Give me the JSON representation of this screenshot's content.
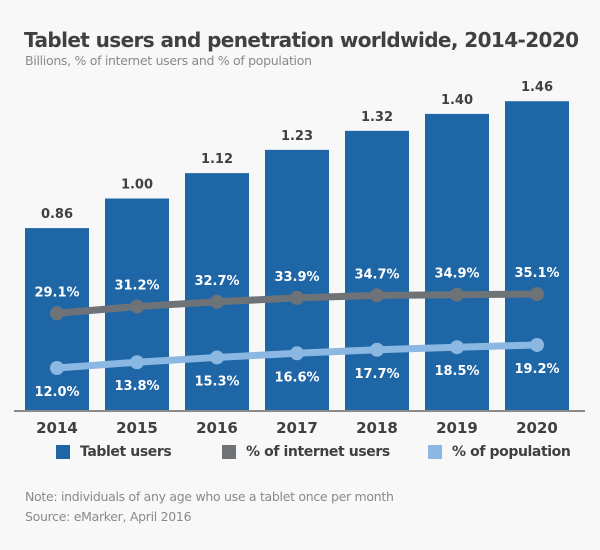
{
  "chart_data": {
    "type": "bar",
    "title": "Tablet users and penetration worldwide, 2014-2020",
    "subtitle": "Billions, % of internet users and % of population",
    "categories": [
      "2014",
      "2015",
      "2016",
      "2017",
      "2018",
      "2019",
      "2020"
    ],
    "series": [
      {
        "name": "Tablet users",
        "type": "bar",
        "values": [
          0.86,
          1.0,
          1.12,
          1.23,
          1.32,
          1.4,
          1.46
        ],
        "labels": [
          "0.86",
          "1.00",
          "1.12",
          "1.23",
          "1.32",
          "1.40",
          "1.46"
        ],
        "color": "#1f66a6"
      },
      {
        "name": "% of internet users",
        "type": "line",
        "values": [
          29.1,
          31.2,
          32.7,
          33.9,
          34.7,
          34.9,
          35.1
        ],
        "labels": [
          "29.1%",
          "31.2%",
          "32.7%",
          "33.9%",
          "34.7%",
          "34.9%",
          "35.1%"
        ],
        "color": "#6e7378"
      },
      {
        "name": "% of population",
        "type": "line",
        "values": [
          12.0,
          13.8,
          15.3,
          16.6,
          17.7,
          18.5,
          19.2
        ],
        "labels": [
          "12.0%",
          "13.8%",
          "15.3%",
          "16.6%",
          "17.7%",
          "18.5%",
          "19.2%"
        ],
        "color": "#8ab8e3"
      }
    ],
    "grid": false,
    "legend": "bottom"
  },
  "notes": {
    "note": "Note: individuals of any age who use a tablet once per month",
    "source": "Source: eMarker, April 2016"
  }
}
